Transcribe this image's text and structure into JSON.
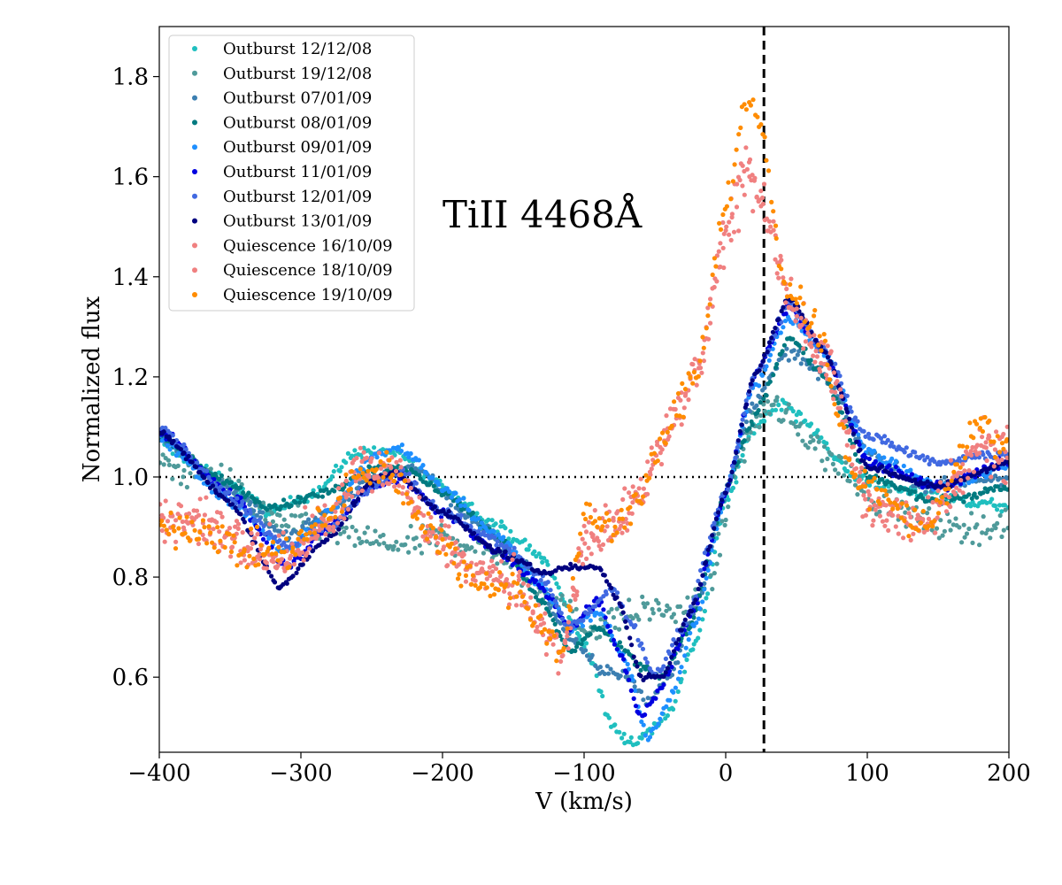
{
  "chart_data": {
    "type": "scatter",
    "title": "",
    "annotation": "TiII 4468Å",
    "xlabel": "V (km/s)",
    "ylabel": "Normalized flux",
    "xlim": [
      -400,
      200
    ],
    "ylim": [
      0.45,
      1.9
    ],
    "xticks": [
      -400,
      -300,
      -200,
      -100,
      0,
      100,
      200
    ],
    "xtick_labels": [
      "−400",
      "−300",
      "−200",
      "−100",
      "0",
      "100",
      "200"
    ],
    "yticks": [
      0.6,
      0.8,
      1.0,
      1.2,
      1.4,
      1.6,
      1.8
    ],
    "ytick_labels": [
      "0.6",
      "0.8",
      "1.0",
      "1.2",
      "1.4",
      "1.6",
      "1.8"
    ],
    "reference_lines": {
      "vertical_dashed_x": 27,
      "horizontal_dotted_y": 1.0
    },
    "legend_position": "upper-left",
    "series": [
      {
        "name": "Outburst 12/12/08",
        "color": "#1fbfbf",
        "scatter": 0.012,
        "tilt": 0,
        "profile": [
          [
            -400,
            1.07
          ],
          [
            -360,
            1.0
          ],
          [
            -320,
            0.93
          ],
          [
            -290,
            0.97
          ],
          [
            -260,
            1.05
          ],
          [
            -235,
            1.05
          ],
          [
            -200,
            0.98
          ],
          [
            -160,
            0.9
          ],
          [
            -130,
            0.84
          ],
          [
            -100,
            0.67
          ],
          [
            -80,
            0.5
          ],
          [
            -65,
            0.47
          ],
          [
            -55,
            0.49
          ],
          [
            -40,
            0.53
          ],
          [
            -20,
            0.68
          ],
          [
            0,
            0.95
          ],
          [
            20,
            1.1
          ],
          [
            40,
            1.15
          ],
          [
            60,
            1.1
          ],
          [
            90,
            1.0
          ],
          [
            130,
            0.97
          ],
          [
            200,
            0.94
          ]
        ]
      },
      {
        "name": "Outburst 19/12/08",
        "color": "#4f9a9a",
        "scatter": 0.03,
        "tilt": 0,
        "profile": [
          [
            -400,
            1.02
          ],
          [
            -360,
            1.0
          ],
          [
            -320,
            0.92
          ],
          [
            -290,
            0.9
          ],
          [
            -260,
            0.88
          ],
          [
            -230,
            0.86
          ],
          [
            -200,
            0.88
          ],
          [
            -160,
            0.85
          ],
          [
            -130,
            0.78
          ],
          [
            -100,
            0.7
          ],
          [
            -70,
            0.72
          ],
          [
            -50,
            0.74
          ],
          [
            -30,
            0.72
          ],
          [
            -10,
            0.8
          ],
          [
            10,
            1.05
          ],
          [
            30,
            1.15
          ],
          [
            50,
            1.1
          ],
          [
            80,
            1.02
          ],
          [
            110,
            0.95
          ],
          [
            150,
            0.9
          ],
          [
            200,
            0.9
          ]
        ]
      },
      {
        "name": "Outburst 07/01/09",
        "color": "#3c7fb1",
        "scatter": 0.012,
        "tilt": 0,
        "profile": [
          [
            -400,
            1.08
          ],
          [
            -350,
            0.98
          ],
          [
            -310,
            0.88
          ],
          [
            -280,
            0.93
          ],
          [
            -250,
            1.0
          ],
          [
            -220,
            1.02
          ],
          [
            -180,
            0.92
          ],
          [
            -140,
            0.82
          ],
          [
            -110,
            0.68
          ],
          [
            -90,
            0.62
          ],
          [
            -70,
            0.6
          ],
          [
            -55,
            0.55
          ],
          [
            -40,
            0.6
          ],
          [
            -20,
            0.75
          ],
          [
            0,
            0.97
          ],
          [
            20,
            1.15
          ],
          [
            45,
            1.25
          ],
          [
            70,
            1.2
          ],
          [
            100,
            1.05
          ],
          [
            140,
            0.98
          ],
          [
            200,
            1.0
          ]
        ]
      },
      {
        "name": "Outburst 08/01/09",
        "color": "#007a80",
        "scatter": 0.008,
        "tilt": 0,
        "profile": [
          [
            -400,
            1.08
          ],
          [
            -360,
            1.0
          ],
          [
            -320,
            0.94
          ],
          [
            -280,
            0.97
          ],
          [
            -250,
            1.02
          ],
          [
            -230,
            1.02
          ],
          [
            -200,
            0.97
          ],
          [
            -160,
            0.88
          ],
          [
            -130,
            0.75
          ],
          [
            -110,
            0.65
          ],
          [
            -90,
            0.7
          ],
          [
            -75,
            0.66
          ],
          [
            -60,
            0.62
          ],
          [
            -45,
            0.6
          ],
          [
            -25,
            0.7
          ],
          [
            0,
            0.97
          ],
          [
            20,
            1.12
          ],
          [
            45,
            1.28
          ],
          [
            70,
            1.2
          ],
          [
            100,
            1.0
          ],
          [
            150,
            0.95
          ],
          [
            200,
            0.98
          ]
        ]
      },
      {
        "name": "Outburst 09/01/09",
        "color": "#1e8fff",
        "scatter": 0.01,
        "tilt": 0,
        "profile": [
          [
            -400,
            1.08
          ],
          [
            -350,
            0.95
          ],
          [
            -310,
            0.85
          ],
          [
            -280,
            0.93
          ],
          [
            -250,
            1.04
          ],
          [
            -230,
            1.06
          ],
          [
            -200,
            0.98
          ],
          [
            -160,
            0.88
          ],
          [
            -130,
            0.78
          ],
          [
            -110,
            0.7
          ],
          [
            -90,
            0.73
          ],
          [
            -70,
            0.63
          ],
          [
            -55,
            0.48
          ],
          [
            -40,
            0.55
          ],
          [
            -20,
            0.72
          ],
          [
            0,
            0.97
          ],
          [
            20,
            1.18
          ],
          [
            45,
            1.32
          ],
          [
            70,
            1.25
          ],
          [
            100,
            1.05
          ],
          [
            150,
            0.98
          ],
          [
            200,
            1.02
          ]
        ]
      },
      {
        "name": "Outburst 11/01/09",
        "color": "#0000e0",
        "scatter": 0.01,
        "tilt": 0,
        "profile": [
          [
            -400,
            1.09
          ],
          [
            -350,
            0.97
          ],
          [
            -310,
            0.82
          ],
          [
            -280,
            0.9
          ],
          [
            -250,
            0.98
          ],
          [
            -230,
            1.0
          ],
          [
            -200,
            0.93
          ],
          [
            -160,
            0.85
          ],
          [
            -130,
            0.78
          ],
          [
            -110,
            0.7
          ],
          [
            -90,
            0.75
          ],
          [
            -75,
            0.65
          ],
          [
            -60,
            0.52
          ],
          [
            -45,
            0.58
          ],
          [
            -25,
            0.72
          ],
          [
            0,
            0.97
          ],
          [
            20,
            1.2
          ],
          [
            45,
            1.34
          ],
          [
            70,
            1.25
          ],
          [
            100,
            1.03
          ],
          [
            150,
            0.98
          ],
          [
            200,
            1.03
          ]
        ]
      },
      {
        "name": "Outburst 12/01/09",
        "color": "#4169e1",
        "scatter": 0.01,
        "tilt": 0,
        "profile": [
          [
            -400,
            1.1
          ],
          [
            -350,
            0.96
          ],
          [
            -310,
            0.86
          ],
          [
            -280,
            0.9
          ],
          [
            -250,
            0.98
          ],
          [
            -230,
            1.01
          ],
          [
            -200,
            0.93
          ],
          [
            -160,
            0.87
          ],
          [
            -130,
            0.8
          ],
          [
            -110,
            0.7
          ],
          [
            -90,
            0.75
          ],
          [
            -80,
            0.78
          ],
          [
            -65,
            0.7
          ],
          [
            -50,
            0.6
          ],
          [
            -30,
            0.7
          ],
          [
            0,
            0.97
          ],
          [
            20,
            1.2
          ],
          [
            45,
            1.35
          ],
          [
            70,
            1.25
          ],
          [
            100,
            1.08
          ],
          [
            150,
            1.03
          ],
          [
            200,
            1.05
          ]
        ]
      },
      {
        "name": "Outburst 13/01/09",
        "color": "#00007f",
        "scatter": 0.006,
        "tilt": 0,
        "profile": [
          [
            -400,
            1.09
          ],
          [
            -350,
            0.95
          ],
          [
            -315,
            0.78
          ],
          [
            -280,
            0.88
          ],
          [
            -250,
            0.99
          ],
          [
            -235,
            1.01
          ],
          [
            -200,
            0.93
          ],
          [
            -160,
            0.85
          ],
          [
            -130,
            0.81
          ],
          [
            -110,
            0.82
          ],
          [
            -90,
            0.82
          ],
          [
            -75,
            0.75
          ],
          [
            -60,
            0.6
          ],
          [
            -45,
            0.6
          ],
          [
            -25,
            0.73
          ],
          [
            0,
            0.97
          ],
          [
            20,
            1.2
          ],
          [
            45,
            1.36
          ],
          [
            70,
            1.25
          ],
          [
            100,
            1.02
          ],
          [
            150,
            0.98
          ],
          [
            200,
            1.03
          ]
        ]
      },
      {
        "name": "Quiescence 16/10/09",
        "color": "#f08080",
        "scatter": 0.045,
        "tilt": 0,
        "profile": [
          [
            -400,
            0.9
          ],
          [
            -370,
            0.92
          ],
          [
            -340,
            0.88
          ],
          [
            -310,
            0.84
          ],
          [
            -280,
            0.92
          ],
          [
            -260,
            1.0
          ],
          [
            -240,
            1.02
          ],
          [
            -210,
            0.9
          ],
          [
            -180,
            0.82
          ],
          [
            -150,
            0.8
          ],
          [
            -130,
            0.7
          ],
          [
            -115,
            0.65
          ],
          [
            -100,
            0.85
          ],
          [
            -80,
            0.88
          ],
          [
            -60,
            0.98
          ],
          [
            -40,
            1.1
          ],
          [
            -20,
            1.2
          ],
          [
            0,
            1.45
          ],
          [
            15,
            1.6
          ],
          [
            30,
            1.55
          ],
          [
            45,
            1.35
          ],
          [
            70,
            1.25
          ],
          [
            100,
            0.95
          ],
          [
            140,
            0.9
          ],
          [
            180,
            1.05
          ],
          [
            200,
            1.03
          ]
        ]
      },
      {
        "name": "Quiescence 18/10/09",
        "color": "#f08080",
        "scatter": 0.04,
        "tilt": 0,
        "profile": [
          [
            -400,
            0.92
          ],
          [
            -370,
            0.9
          ],
          [
            -340,
            0.86
          ],
          [
            -310,
            0.83
          ],
          [
            -280,
            0.9
          ],
          [
            -260,
            1.02
          ],
          [
            -240,
            1.03
          ],
          [
            -210,
            0.9
          ],
          [
            -180,
            0.82
          ],
          [
            -150,
            0.78
          ],
          [
            -130,
            0.7
          ],
          [
            -115,
            0.65
          ],
          [
            -100,
            0.88
          ],
          [
            -80,
            0.9
          ],
          [
            -60,
            0.96
          ],
          [
            -40,
            1.08
          ],
          [
            -20,
            1.22
          ],
          [
            0,
            1.5
          ],
          [
            15,
            1.65
          ],
          [
            30,
            1.5
          ],
          [
            45,
            1.35
          ],
          [
            70,
            1.22
          ],
          [
            100,
            0.95
          ],
          [
            140,
            0.9
          ],
          [
            180,
            1.08
          ],
          [
            200,
            1.05
          ]
        ]
      },
      {
        "name": "Quiescence 19/10/09",
        "color": "#ff8c00",
        "scatter": 0.035,
        "tilt": 0,
        "profile": [
          [
            -400,
            0.9
          ],
          [
            -370,
            0.9
          ],
          [
            -340,
            0.85
          ],
          [
            -310,
            0.85
          ],
          [
            -280,
            0.92
          ],
          [
            -260,
            1.0
          ],
          [
            -240,
            1.02
          ],
          [
            -210,
            0.9
          ],
          [
            -180,
            0.8
          ],
          [
            -150,
            0.78
          ],
          [
            -130,
            0.7
          ],
          [
            -115,
            0.66
          ],
          [
            -100,
            0.92
          ],
          [
            -80,
            0.9
          ],
          [
            -60,
            0.96
          ],
          [
            -40,
            1.1
          ],
          [
            -20,
            1.22
          ],
          [
            0,
            1.55
          ],
          [
            15,
            1.75
          ],
          [
            25,
            1.7
          ],
          [
            40,
            1.4
          ],
          [
            65,
            1.3
          ],
          [
            90,
            1.0
          ],
          [
            140,
            0.9
          ],
          [
            180,
            1.1
          ],
          [
            200,
            1.05
          ]
        ]
      }
    ]
  }
}
